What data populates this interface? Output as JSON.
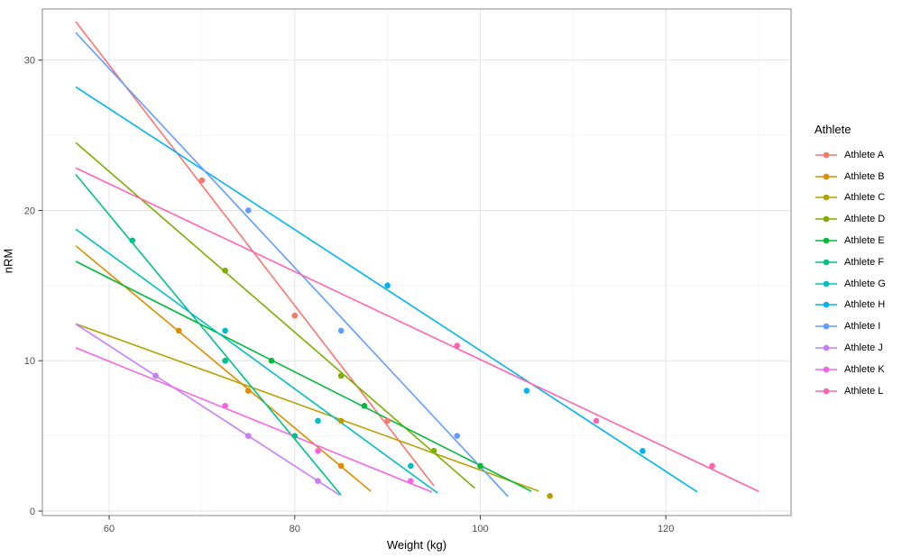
{
  "chart_data": {
    "type": "scatter",
    "title": "",
    "xlabel": "Weight (kg)",
    "ylabel": "nRM",
    "legend_title": "Athlete",
    "legend_position": "right",
    "grid": "on",
    "x_ticks": [
      60,
      80,
      100,
      120
    ],
    "x_minor_ticks": [
      70,
      90,
      110,
      130
    ],
    "y_ticks": [
      0,
      10,
      20,
      30
    ],
    "y_minor_ticks": [
      5,
      15,
      25
    ],
    "xlim": [
      52.8,
      133.5
    ],
    "ylim": [
      -0.3,
      33.4
    ],
    "colors": {
      "grid_major": "#E3E3E3",
      "grid_minor": "#F0F0F0",
      "panel_border": "#9B9B9B",
      "tick_mark": "#333333",
      "tick_label": "#4D4D4D",
      "panel_bg": "#FFFFFF"
    },
    "series": [
      {
        "name": "Athlete A",
        "color": "#F8766D",
        "points": [
          [
            70,
            22
          ],
          [
            80,
            13
          ],
          [
            90,
            6
          ]
        ],
        "fit": {
          "slope": -0.8,
          "intercept": 77.67,
          "x_start": 56.4,
          "x_end": 95.0
        }
      },
      {
        "name": "Athlete B",
        "color": "#DE8C00",
        "points": [
          [
            67.5,
            12
          ],
          [
            75,
            8
          ],
          [
            85,
            3
          ]
        ],
        "fit": {
          "slope": -0.5135,
          "intercept": 46.61,
          "x_start": 56.4,
          "x_end": 88.2
        }
      },
      {
        "name": "Athlete C",
        "color": "#B79F00",
        "points": [
          [
            85,
            6
          ],
          [
            95,
            4
          ],
          [
            107.5,
            1
          ]
        ],
        "fit": {
          "slope": -0.223,
          "intercept": 25.03,
          "x_start": 56.4,
          "x_end": 106.3
        }
      },
      {
        "name": "Athlete D",
        "color": "#7CAE00",
        "points": [
          [
            72.5,
            16
          ],
          [
            85,
            9
          ],
          [
            95,
            4
          ]
        ],
        "fit": {
          "slope": -0.5344,
          "intercept": 54.65,
          "x_start": 56.4,
          "x_end": 99.4
        }
      },
      {
        "name": "Athlete E",
        "color": "#00BA38",
        "points": [
          [
            77.5,
            10
          ],
          [
            87.5,
            7
          ],
          [
            100,
            3
          ]
        ],
        "fit": {
          "slope": -0.3115,
          "intercept": 34.18,
          "x_start": 56.4,
          "x_end": 105.5
        }
      },
      {
        "name": "Athlete F",
        "color": "#00C08B",
        "points": [
          [
            62.5,
            18
          ],
          [
            72.5,
            10
          ],
          [
            80,
            5
          ]
        ],
        "fit": {
          "slope": -0.7459,
          "intercept": 64.46,
          "x_start": 56.4,
          "x_end": 85.0
        }
      },
      {
        "name": "Athlete G",
        "color": "#00BFC4",
        "points": [
          [
            72.5,
            12
          ],
          [
            82.5,
            6
          ],
          [
            92.5,
            3
          ]
        ],
        "fit": {
          "slope": -0.45,
          "intercept": 44.13,
          "x_start": 56.4,
          "x_end": 95.4
        }
      },
      {
        "name": "Athlete H",
        "color": "#00B4F0",
        "points": [
          [
            90,
            15
          ],
          [
            105,
            8
          ],
          [
            117.5,
            4
          ]
        ],
        "fit": {
          "slope": -0.4022,
          "intercept": 50.9,
          "x_start": 56.4,
          "x_end": 123.4
        }
      },
      {
        "name": "Athlete I",
        "color": "#619CFF",
        "points": [
          [
            75,
            20
          ],
          [
            85,
            12
          ],
          [
            97.5,
            5
          ]
        ],
        "fit": {
          "slope": -0.6623,
          "intercept": 69.18,
          "x_start": 56.4,
          "x_end": 103.0
        }
      },
      {
        "name": "Athlete J",
        "color": "#C77CFF",
        "points": [
          [
            65,
            9
          ],
          [
            75,
            5
          ],
          [
            82.5,
            2
          ]
        ],
        "fit": {
          "slope": -0.4,
          "intercept": 35.0,
          "x_start": 56.4,
          "x_end": 84.8
        }
      },
      {
        "name": "Athlete K",
        "color": "#F564E3",
        "points": [
          [
            72.5,
            7
          ],
          [
            82.5,
            4
          ],
          [
            92.5,
            2
          ]
        ],
        "fit": {
          "slope": -0.25,
          "intercept": 24.96,
          "x_start": 56.4,
          "x_end": 94.8
        }
      },
      {
        "name": "Athlete L",
        "color": "#FF64B0",
        "points": [
          [
            97.5,
            11
          ],
          [
            112.5,
            6
          ],
          [
            125,
            3
          ]
        ],
        "fit": {
          "slope": -0.2923,
          "intercept": 39.31,
          "x_start": 56.4,
          "x_end": 130.0
        }
      }
    ]
  }
}
